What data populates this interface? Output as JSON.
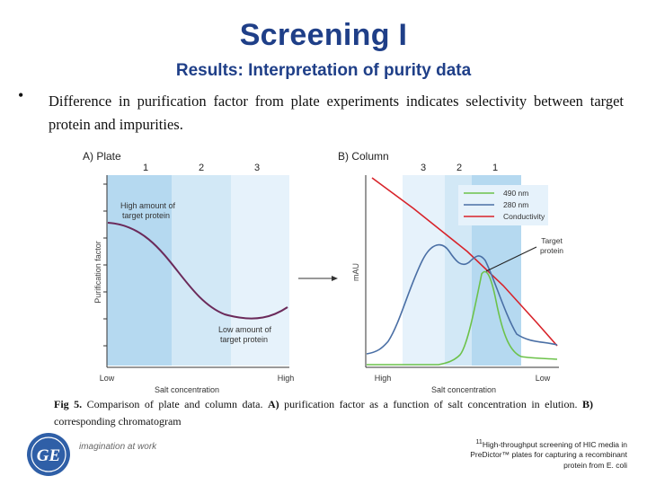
{
  "slide": {
    "title": "Screening I",
    "subtitle": "Results: Interpretation of purity data",
    "bullet_marker": "•",
    "bullet_text": "Difference in purification factor from plate experiments indicates selectivity between target protein and impurities."
  },
  "figure": {
    "panel_a": {
      "label": "A) Plate",
      "zone_labels": [
        "1",
        "2",
        "3"
      ],
      "ylabel": "Purification factor",
      "xlabel": "Salt concentration",
      "x_low": "Low",
      "x_high": "High",
      "annotation_high": [
        "High amount of",
        "target protein"
      ],
      "annotation_low": [
        "Low amount of",
        "target protein"
      ]
    },
    "panel_b": {
      "label": "B) Column",
      "zone_labels": [
        "3",
        "2",
        "1"
      ],
      "ylabel": "mAU",
      "xlabel": "Salt concentration",
      "x_high": "High",
      "x_low": "Low",
      "legend": [
        {
          "name": "490 nm",
          "color": "#6cc24a"
        },
        {
          "name": "280 nm",
          "color": "#4a6fa5"
        },
        {
          "name": "Conductivity",
          "color": "#d8232a"
        }
      ],
      "annotation": [
        "Target",
        "protein"
      ]
    },
    "colors": {
      "zone_dark": "#b5d9f0",
      "zone_mid": "#d2e8f6",
      "zone_light": "#e6f2fb",
      "curve_purple": "#6b2a5a",
      "title_blue": "#1f3f88"
    }
  },
  "caption": {
    "fig_label": "Fig 5.",
    "part1": " Comparison of plate and column data. ",
    "a_label": "A)",
    "part2": " purification factor as a function of salt concentration in elution. ",
    "b_label": "B)",
    "part3": " corresponding chromatogram"
  },
  "footer": {
    "ref_number": "11",
    "reference": "High-throughput screening of HIC media in PreDictor™ plates for capturing a recombinant protein from E. coli"
  },
  "logo": {
    "monogram": "GE",
    "tagline": "imagination at work"
  }
}
